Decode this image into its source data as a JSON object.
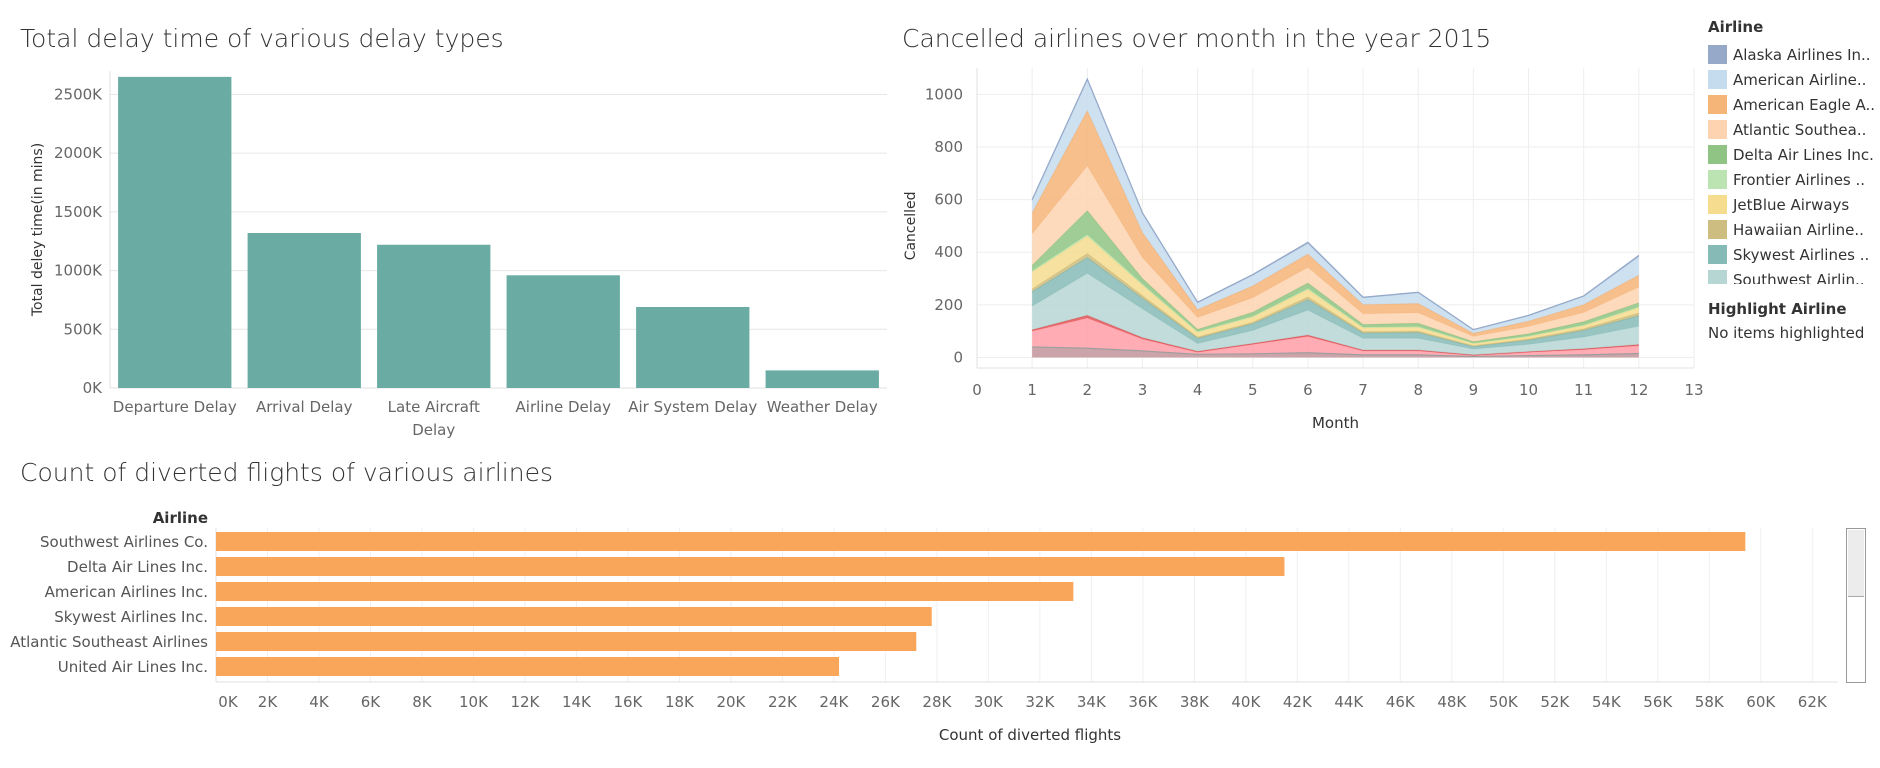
{
  "charts": {
    "delay": {
      "title": "Total delay time of various delay types",
      "ylabel": "Total deley time(in mins)",
      "ticks": [
        "0K",
        "500K",
        "1000K",
        "1500K",
        "2000K",
        "2500K"
      ],
      "tickValues": [
        0,
        500,
        1000,
        1500,
        2000,
        2500
      ],
      "ylim": [
        0,
        2700
      ],
      "color": "#6aaba4"
    },
    "cancelled": {
      "title": "Cancelled airlines over month in the year 2015",
      "xlabel": "Month",
      "ylabel": "Cancelled",
      "xticks": [
        "0",
        "1",
        "2",
        "3",
        "4",
        "5",
        "6",
        "7",
        "8",
        "9",
        "10",
        "11",
        "12",
        "13"
      ],
      "yticks": [
        "0",
        "200",
        "400",
        "600",
        "800",
        "1000"
      ],
      "ytickValues": [
        0,
        200,
        400,
        600,
        800,
        1000
      ]
    },
    "diverted": {
      "title": "Count of diverted flights of various airlines",
      "axis_header": "Airline",
      "xlabel": "Count of diverted flights",
      "ticks": [
        "0K",
        "2K",
        "4K",
        "6K",
        "8K",
        "10K",
        "12K",
        "14K",
        "16K",
        "18K",
        "20K",
        "22K",
        "24K",
        "26K",
        "28K",
        "30K",
        "32K",
        "34K",
        "36K",
        "38K",
        "40K",
        "42K",
        "44K",
        "46K",
        "48K",
        "50K",
        "52K",
        "54K",
        "56K",
        "58K",
        "60K",
        "62K"
      ],
      "color": "#f9a65a"
    }
  },
  "legend": {
    "title": "Airline",
    "items": [
      {
        "label": "Alaska Airlines In..",
        "color": "#96a9c8"
      },
      {
        "label": "American Airline..",
        "color": "#c5dcef"
      },
      {
        "label": "American Eagle A..",
        "color": "#f5b478"
      },
      {
        "label": "Atlantic Southea..",
        "color": "#fdd3b0"
      },
      {
        "label": "Delta Air Lines Inc.",
        "color": "#8fc484"
      },
      {
        "label": "Frontier Airlines ..",
        "color": "#bce3b2"
      },
      {
        "label": "JetBlue Airways",
        "color": "#f5dc8f"
      },
      {
        "label": "Hawaiian Airline..",
        "color": "#cdbd80"
      },
      {
        "label": "Skywest Airlines ..",
        "color": "#86bab6"
      },
      {
        "label": "Southwest Airlin..",
        "color": "#b6d6d3"
      }
    ],
    "highlight_title": "Highlight Airline",
    "highlight_value": "No items highlighted"
  },
  "chart_data": [
    {
      "type": "bar",
      "title": "Total delay time of various delay types",
      "xlabel": "",
      "ylabel": "Total deley time(in mins)",
      "categories": [
        "Departure Delay",
        "Arrival Delay",
        "Late Aircraft Delay",
        "Airline Delay",
        "Air System Delay",
        "Weather Delay"
      ],
      "category_lines": [
        [
          "Departure Delay"
        ],
        [
          "Arrival Delay"
        ],
        [
          "Late Aircraft",
          "Delay"
        ],
        [
          "Airline Delay"
        ],
        [
          "Air System Delay"
        ],
        [
          "Weather Delay"
        ]
      ],
      "values": [
        2650,
        1320,
        1220,
        960,
        690,
        150
      ],
      "ylim": [
        0,
        2700
      ],
      "grid": true
    },
    {
      "type": "area",
      "title": "Cancelled airlines over month in the year 2015",
      "xlabel": "Month",
      "ylabel": "Cancelled",
      "x": [
        1,
        2,
        3,
        4,
        5,
        6,
        7,
        8,
        9,
        10,
        11,
        12
      ],
      "xlim": [
        0,
        13
      ],
      "ylim": [
        -40,
        1100
      ],
      "stacked": true,
      "legend_position": "right",
      "series": [
        {
          "color": "#9e9e9e",
          "values": [
            40,
            35,
            25,
            12,
            14,
            18,
            10,
            10,
            4,
            7,
            10,
            15
          ],
          "overlap": true
        },
        {
          "color": "#ff9ea8",
          "values": [
            100,
            150,
            70,
            20,
            50,
            80,
            25,
            25,
            8,
            20,
            30,
            45
          ]
        },
        {
          "color": "#e15759",
          "values": [
            5,
            10,
            5,
            3,
            3,
            5,
            3,
            3,
            2,
            2,
            3,
            4
          ]
        },
        {
          "color": "#b6d6d3",
          "values": [
            90,
            160,
            110,
            30,
            50,
            95,
            45,
            45,
            22,
            28,
            45,
            70
          ]
        },
        {
          "color": "#86bab6",
          "values": [
            55,
            60,
            40,
            20,
            25,
            40,
            20,
            22,
            10,
            16,
            25,
            40
          ]
        },
        {
          "color": "#cdbd80",
          "values": [
            10,
            15,
            10,
            5,
            6,
            10,
            5,
            5,
            3,
            4,
            6,
            10
          ]
        },
        {
          "color": "#f5dc8f",
          "values": [
            65,
            65,
            40,
            18,
            20,
            28,
            15,
            15,
            8,
            10,
            12,
            20
          ]
        },
        {
          "color": "#bce3b2",
          "values": [
            5,
            8,
            5,
            3,
            3,
            5,
            3,
            3,
            2,
            2,
            3,
            4
          ]
        },
        {
          "color": "#8fc484",
          "values": [
            20,
            90,
            20,
            8,
            15,
            20,
            10,
            12,
            5,
            8,
            12,
            15
          ]
        },
        {
          "color": "#fdd3b0",
          "values": [
            120,
            170,
            80,
            45,
            55,
            60,
            40,
            40,
            20,
            28,
            35,
            60
          ]
        },
        {
          "color": "#f5b478",
          "values": [
            80,
            210,
            95,
            30,
            45,
            50,
            35,
            35,
            12,
            20,
            30,
            45
          ]
        },
        {
          "color": "#c5dcef",
          "values": [
            45,
            115,
            70,
            25,
            40,
            40,
            25,
            40,
            12,
            20,
            30,
            70
          ]
        },
        {
          "color": "#96a9c8",
          "values": [
            5,
            5,
            5,
            3,
            3,
            5,
            3,
            3,
            2,
            2,
            3,
            5
          ]
        }
      ]
    },
    {
      "type": "bar",
      "orientation": "horizontal",
      "title": "Count of diverted flights of various airlines",
      "xlabel": "Count of diverted flights",
      "ylabel": "Airline",
      "categories": [
        "Southwest Airlines Co.",
        "Delta Air Lines Inc.",
        "American Airlines Inc.",
        "Skywest Airlines Inc.",
        "Atlantic Southeast Airlines",
        "United Air Lines Inc."
      ],
      "values": [
        59400,
        41500,
        33300,
        27800,
        27200,
        24200
      ],
      "xlim": [
        0,
        63000
      ],
      "grid": true
    }
  ]
}
